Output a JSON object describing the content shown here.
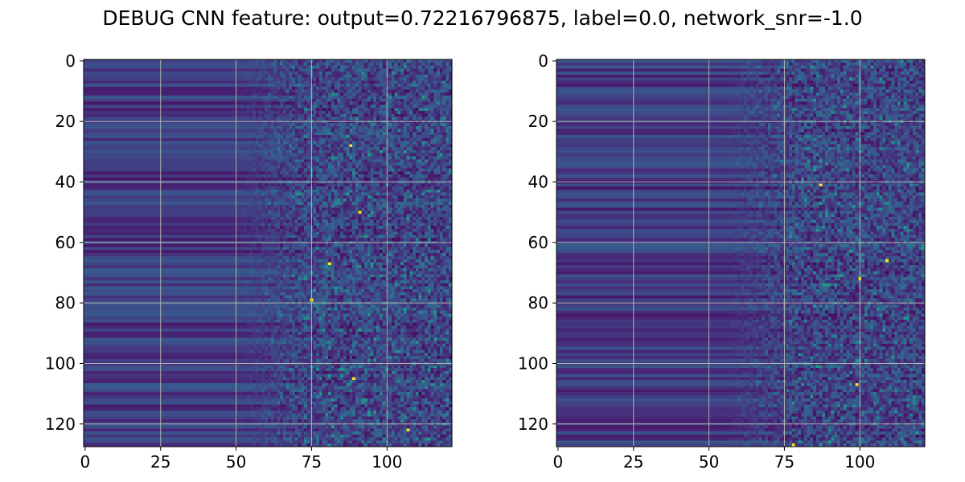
{
  "title": "DEBUG CNN feature: output=0.72216796875, label=0.0, network_snr=-1.0",
  "chart_data": [
    {
      "type": "heatmap",
      "colormap": "viridis",
      "grid": true,
      "xlim": [
        0,
        122
      ],
      "ylim": [
        128,
        0
      ],
      "xticks": [
        0,
        25,
        50,
        75,
        100
      ],
      "yticks": [
        0,
        20,
        40,
        60,
        80,
        100,
        120
      ],
      "shape": {
        "rows": 128,
        "cols": 122
      },
      "value_range": [
        0,
        1
      ],
      "description_of_values": "left columns uniform per row (dark purple/blue horizontal stripes), transitioning around column 50-70 to noisy high-variance pixels with green/yellow outliers",
      "notable_bright_cells": [
        [
          28,
          88
        ],
        [
          50,
          91
        ],
        [
          67,
          81
        ],
        [
          79,
          75
        ],
        [
          105,
          89
        ],
        [
          122,
          107
        ]
      ]
    },
    {
      "type": "heatmap",
      "colormap": "viridis",
      "grid": true,
      "xlim": [
        0,
        122
      ],
      "ylim": [
        128,
        0
      ],
      "xticks": [
        0,
        25,
        50,
        75,
        100
      ],
      "yticks": [
        0,
        20,
        40,
        60,
        80,
        100,
        120
      ],
      "shape": {
        "rows": 128,
        "cols": 122
      },
      "value_range": [
        0,
        1
      ],
      "description_of_values": "left columns uniform per row (dark purple/blue horizontal stripes), transitioning around column 55-75 to noisy high-variance pixels with sparse green/yellow outliers",
      "notable_bright_cells": [
        [
          41,
          87
        ],
        [
          66,
          109
        ],
        [
          72,
          100
        ],
        [
          107,
          99
        ],
        [
          127,
          78
        ]
      ]
    }
  ]
}
